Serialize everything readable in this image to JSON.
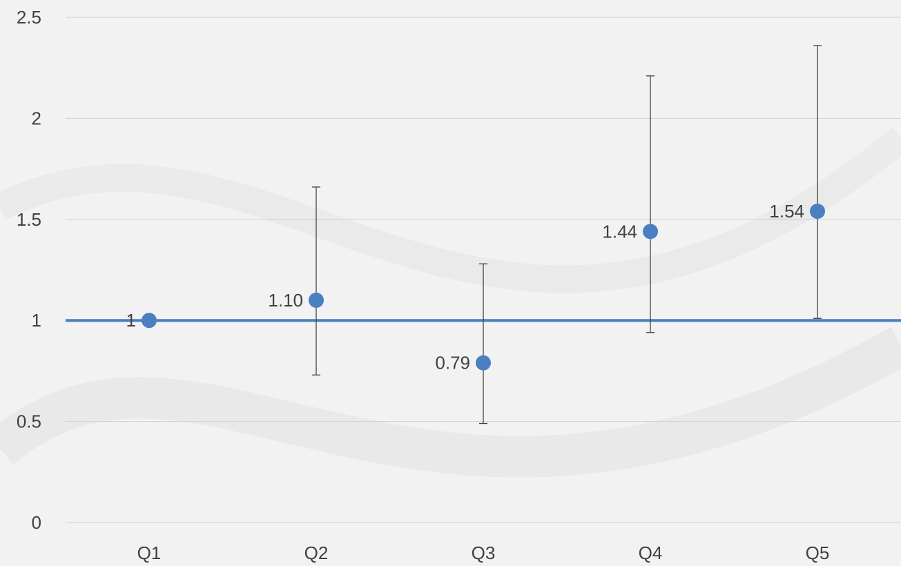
{
  "chart_data": {
    "type": "scatter",
    "title": "",
    "xlabel": "",
    "ylabel": "",
    "categories": [
      "Q1",
      "Q2",
      "Q3",
      "Q4",
      "Q5"
    ],
    "yticks": [
      "0",
      "0.5",
      "1",
      "1.5",
      "2",
      "2.5"
    ],
    "ylim": [
      0,
      2.5
    ],
    "grid": true,
    "reference_line": 1,
    "series": [
      {
        "values": [
          1,
          1.1,
          0.79,
          1.44,
          1.54
        ],
        "labels": [
          "1",
          "1.10",
          "0.79",
          "1.44",
          "1.54"
        ],
        "error_low": [
          null,
          0.73,
          0.49,
          0.94,
          1.01
        ],
        "error_high": [
          null,
          1.66,
          1.28,
          2.21,
          2.36
        ]
      }
    ],
    "colors": {
      "marker": "#4a7fc1",
      "reference_line": "#4a7fc1",
      "error_bar": "#404040",
      "grid": "#d0d0d0",
      "text": "#404040"
    }
  }
}
